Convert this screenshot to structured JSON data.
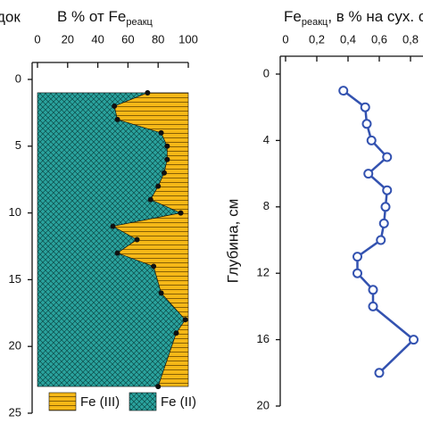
{
  "chart_data": [
    {
      "type": "stacked-area-horizontal",
      "title": "В % от Fe",
      "title_sub": "реакц",
      "y_label": "док",
      "y": [
        1,
        2,
        3,
        4,
        5,
        6,
        7,
        8,
        9,
        10,
        11,
        12,
        13,
        14,
        16,
        18,
        19,
        23
      ],
      "series": [
        {
          "name": "Fe (II)",
          "color": "#2aa39e",
          "values": [
            73,
            51,
            53,
            82,
            86,
            86,
            84,
            80,
            75,
            95,
            50,
            66,
            53,
            77,
            82,
            98,
            92,
            80
          ]
        },
        {
          "name": "Fe (III)",
          "color": "#f6b817",
          "values": [
            27,
            49,
            47,
            18,
            14,
            14,
            16,
            20,
            25,
            5,
            50,
            34,
            47,
            23,
            18,
            2,
            8,
            20
          ]
        }
      ],
      "xlim": [
        0,
        100
      ],
      "xticks": [
        0,
        20,
        40,
        60,
        80,
        100
      ],
      "ylim": [
        0,
        25
      ],
      "yticks": [
        0,
        5,
        10,
        15,
        20,
        25
      ]
    },
    {
      "type": "line",
      "title": "Fe",
      "title_sub": "реакц",
      "title_rest": ", в % на сух. ос",
      "y_label": "Глубина, см",
      "y": [
        1,
        2,
        3,
        4,
        5,
        6,
        7,
        8,
        9,
        10,
        11,
        12,
        13,
        14,
        16,
        18
      ],
      "series": [
        {
          "color": "#3352b0",
          "values": [
            0.37,
            0.51,
            0.52,
            0.55,
            0.65,
            0.53,
            0.65,
            0.64,
            0.63,
            0.61,
            0.46,
            0.46,
            0.56,
            0.56,
            0.82,
            0.6
          ]
        }
      ],
      "xlim": [
        0,
        0.88
      ],
      "xticks": [
        0,
        {
          "value": 0.2,
          "label": "0,2"
        },
        {
          "value": 0.4,
          "label": "0,4"
        },
        {
          "value": 0.6,
          "label": "0,6"
        },
        {
          "value": 0.8,
          "label": "0,8"
        }
      ],
      "ylim": [
        0,
        20
      ],
      "yticks": [
        0,
        4,
        8,
        12,
        16,
        20
      ]
    }
  ]
}
